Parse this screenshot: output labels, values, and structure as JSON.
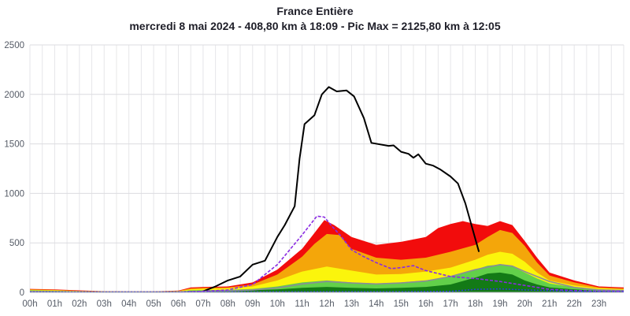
{
  "chart_data": {
    "type": "area",
    "title": "France Entière",
    "subtitle": "mercredi 8 mai 2024 - 408,80 km à 18:09 - Pic Max = 2125,80 km à 12:05",
    "xlabel": "",
    "ylabel": "",
    "xlim": [
      0,
      24
    ],
    "ylim": [
      0,
      2500
    ],
    "grid": true,
    "legend": "none",
    "x_ticks": [
      "00h",
      "01h",
      "02h",
      "03h",
      "04h",
      "05h",
      "06h",
      "07h",
      "08h",
      "09h",
      "10h",
      "11h",
      "12h",
      "13h",
      "14h",
      "15h",
      "16h",
      "17h",
      "18h",
      "19h",
      "20h",
      "21h",
      "22h",
      "23h"
    ],
    "y_ticks": [
      0,
      500,
      1000,
      1500,
      2000,
      2500
    ],
    "stacked_series": [
      {
        "name": "red",
        "color": "#f20c0c",
        "points": [
          [
            0,
            35
          ],
          [
            1,
            30
          ],
          [
            2,
            20
          ],
          [
            3,
            12
          ],
          [
            4,
            10
          ],
          [
            5,
            10
          ],
          [
            6,
            18
          ],
          [
            6.5,
            50
          ],
          [
            7,
            55
          ],
          [
            8,
            60
          ],
          [
            9,
            100
          ],
          [
            10,
            230
          ],
          [
            11,
            440
          ],
          [
            11.5,
            600
          ],
          [
            11.9,
            730
          ],
          [
            12.3,
            680
          ],
          [
            13,
            560
          ],
          [
            14,
            480
          ],
          [
            15,
            510
          ],
          [
            16,
            560
          ],
          [
            16.5,
            650
          ],
          [
            17,
            690
          ],
          [
            17.5,
            720
          ],
          [
            18,
            690
          ],
          [
            18.5,
            670
          ],
          [
            19,
            720
          ],
          [
            19.5,
            680
          ],
          [
            20,
            520
          ],
          [
            20.5,
            350
          ],
          [
            21,
            200
          ],
          [
            22,
            120
          ],
          [
            23,
            60
          ],
          [
            24,
            50
          ]
        ]
      },
      {
        "name": "orange",
        "color": "#f4a60a",
        "points": [
          [
            0,
            30
          ],
          [
            1,
            25
          ],
          [
            2,
            15
          ],
          [
            3,
            10
          ],
          [
            4,
            8
          ],
          [
            5,
            8
          ],
          [
            6,
            15
          ],
          [
            6.5,
            40
          ],
          [
            7,
            45
          ],
          [
            8,
            50
          ],
          [
            9,
            80
          ],
          [
            10,
            180
          ],
          [
            11,
            360
          ],
          [
            11.5,
            490
          ],
          [
            12,
            590
          ],
          [
            12.5,
            580
          ],
          [
            13,
            440
          ],
          [
            14,
            350
          ],
          [
            15,
            330
          ],
          [
            16,
            350
          ],
          [
            17,
            410
          ],
          [
            18,
            480
          ],
          [
            18.5,
            560
          ],
          [
            19,
            630
          ],
          [
            19.5,
            600
          ],
          [
            20,
            470
          ],
          [
            20.5,
            300
          ],
          [
            21,
            170
          ],
          [
            22,
            100
          ],
          [
            23,
            50
          ],
          [
            24,
            40
          ]
        ]
      },
      {
        "name": "yellow",
        "color": "#fbf50c",
        "points": [
          [
            0,
            25
          ],
          [
            1,
            20
          ],
          [
            2,
            12
          ],
          [
            3,
            8
          ],
          [
            4,
            6
          ],
          [
            5,
            6
          ],
          [
            6,
            12
          ],
          [
            6.5,
            30
          ],
          [
            7,
            35
          ],
          [
            8,
            40
          ],
          [
            9,
            60
          ],
          [
            10,
            120
          ],
          [
            11,
            210
          ],
          [
            12,
            260
          ],
          [
            13,
            220
          ],
          [
            14,
            180
          ],
          [
            15,
            185
          ],
          [
            16,
            210
          ],
          [
            17,
            250
          ],
          [
            18,
            330
          ],
          [
            18.5,
            380
          ],
          [
            19,
            410
          ],
          [
            19.5,
            390
          ],
          [
            20,
            310
          ],
          [
            20.5,
            200
          ],
          [
            21,
            120
          ],
          [
            22,
            70
          ],
          [
            23,
            40
          ],
          [
            24,
            30
          ]
        ]
      },
      {
        "name": "light-green",
        "color": "#62d04a",
        "points": [
          [
            0,
            20
          ],
          [
            1,
            15
          ],
          [
            2,
            10
          ],
          [
            3,
            6
          ],
          [
            4,
            5
          ],
          [
            5,
            5
          ],
          [
            6,
            8
          ],
          [
            6.5,
            20
          ],
          [
            7,
            22
          ],
          [
            8,
            25
          ],
          [
            9,
            35
          ],
          [
            10,
            60
          ],
          [
            11,
            100
          ],
          [
            12,
            120
          ],
          [
            13,
            100
          ],
          [
            14,
            90
          ],
          [
            15,
            100
          ],
          [
            16,
            120
          ],
          [
            17,
            160
          ],
          [
            18,
            230
          ],
          [
            18.5,
            270
          ],
          [
            19,
            280
          ],
          [
            19.5,
            260
          ],
          [
            20,
            200
          ],
          [
            20.5,
            140
          ],
          [
            21,
            90
          ],
          [
            22,
            50
          ],
          [
            23,
            30
          ],
          [
            24,
            20
          ]
        ]
      },
      {
        "name": "dark-green",
        "color": "#137a16",
        "points": [
          [
            0,
            15
          ],
          [
            1,
            12
          ],
          [
            2,
            8
          ],
          [
            3,
            5
          ],
          [
            4,
            4
          ],
          [
            5,
            4
          ],
          [
            6,
            6
          ],
          [
            6.5,
            15
          ],
          [
            7,
            16
          ],
          [
            8,
            18
          ],
          [
            9,
            22
          ],
          [
            10,
            30
          ],
          [
            11,
            45
          ],
          [
            12,
            55
          ],
          [
            13,
            45
          ],
          [
            14,
            40
          ],
          [
            15,
            45
          ],
          [
            16,
            55
          ],
          [
            17,
            80
          ],
          [
            18,
            150
          ],
          [
            18.5,
            190
          ],
          [
            19,
            200
          ],
          [
            19.5,
            180
          ],
          [
            20,
            120
          ],
          [
            20.5,
            80
          ],
          [
            21,
            50
          ],
          [
            22,
            30
          ],
          [
            23,
            15
          ],
          [
            24,
            10
          ]
        ]
      }
    ],
    "line_series": [
      {
        "name": "black",
        "color": "#000000",
        "dashed": false,
        "points": [
          [
            7,
            10
          ],
          [
            7.5,
            60
          ],
          [
            8,
            120
          ],
          [
            8.5,
            160
          ],
          [
            9,
            280
          ],
          [
            9.5,
            320
          ],
          [
            10,
            560
          ],
          [
            10.3,
            680
          ],
          [
            10.7,
            870
          ],
          [
            10.9,
            1350
          ],
          [
            11.1,
            1700
          ],
          [
            11.5,
            1790
          ],
          [
            11.8,
            2000
          ],
          [
            12.08,
            2075
          ],
          [
            12.4,
            2030
          ],
          [
            12.8,
            2040
          ],
          [
            13.1,
            1980
          ],
          [
            13.5,
            1760
          ],
          [
            13.8,
            1510
          ],
          [
            14.5,
            1480
          ],
          [
            14.7,
            1485
          ],
          [
            15,
            1420
          ],
          [
            15.3,
            1400
          ],
          [
            15.5,
            1360
          ],
          [
            15.7,
            1395
          ],
          [
            16,
            1300
          ],
          [
            16.3,
            1280
          ],
          [
            16.6,
            1240
          ],
          [
            17,
            1170
          ],
          [
            17.3,
            1100
          ],
          [
            17.6,
            900
          ],
          [
            18.15,
            409
          ]
        ]
      },
      {
        "name": "grey",
        "color": "#8c8c98",
        "dashed": false,
        "points": [
          [
            0,
            10
          ],
          [
            1,
            8
          ],
          [
            2,
            5
          ],
          [
            3,
            3
          ],
          [
            4,
            3
          ],
          [
            5,
            3
          ],
          [
            6,
            5
          ],
          [
            7,
            10
          ],
          [
            8,
            15
          ],
          [
            9,
            25
          ],
          [
            10,
            45
          ],
          [
            11,
            85
          ],
          [
            12,
            110
          ],
          [
            13,
            95
          ],
          [
            14,
            85
          ],
          [
            15,
            95
          ],
          [
            16,
            115
          ],
          [
            17,
            160
          ],
          [
            18,
            230
          ],
          [
            19,
            280
          ],
          [
            19.5,
            265
          ],
          [
            20,
            210
          ],
          [
            21,
            110
          ],
          [
            22,
            50
          ],
          [
            23,
            25
          ],
          [
            24,
            18
          ]
        ]
      },
      {
        "name": "violet-dashed",
        "color": "#8a2be2",
        "dashed": true,
        "points": [
          [
            6,
            4
          ],
          [
            7,
            10
          ],
          [
            8,
            25
          ],
          [
            9,
            80
          ],
          [
            10,
            280
          ],
          [
            11,
            580
          ],
          [
            11.6,
            770
          ],
          [
            11.9,
            760
          ],
          [
            12.2,
            670
          ],
          [
            12.6,
            560
          ],
          [
            13,
            430
          ],
          [
            13.5,
            360
          ],
          [
            14,
            300
          ],
          [
            14.6,
            240
          ],
          [
            15,
            250
          ],
          [
            15.5,
            270
          ],
          [
            16,
            220
          ],
          [
            16.5,
            190
          ],
          [
            17,
            160
          ],
          [
            17.5,
            150
          ],
          [
            18,
            140
          ],
          [
            19,
            110
          ],
          [
            20,
            70
          ],
          [
            21,
            30
          ],
          [
            22,
            18
          ],
          [
            23,
            12
          ],
          [
            24,
            10
          ]
        ]
      },
      {
        "name": "blue-dotted",
        "color": "#2b3bd6",
        "dashed": true,
        "points": [
          [
            0,
            3
          ],
          [
            6,
            3
          ],
          [
            9,
            5
          ],
          [
            12,
            6
          ],
          [
            15,
            6
          ],
          [
            17,
            10
          ],
          [
            18,
            30
          ],
          [
            19,
            35
          ],
          [
            20,
            25
          ],
          [
            22,
            10
          ],
          [
            24,
            6
          ]
        ]
      }
    ]
  }
}
